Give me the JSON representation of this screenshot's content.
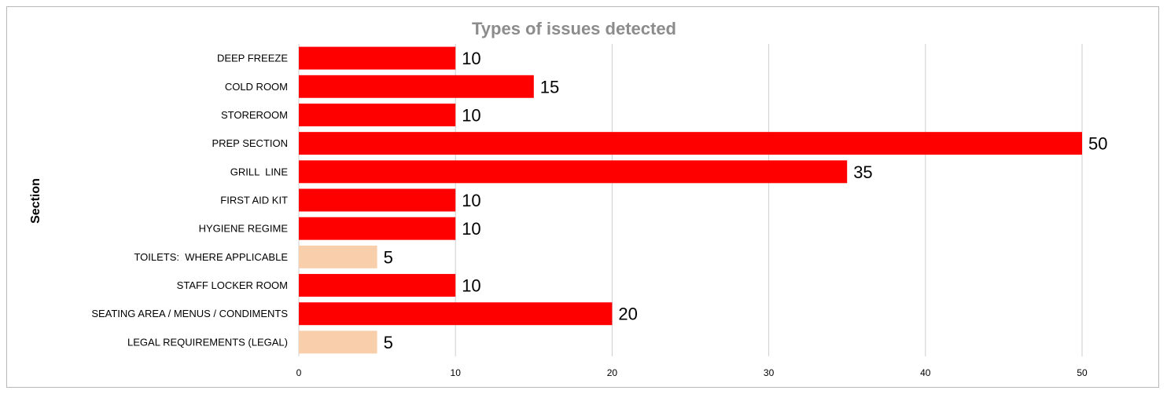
{
  "chart_data": {
    "type": "bar",
    "orientation": "horizontal",
    "title": "Types of issues detected",
    "xlabel": "",
    "ylabel": "Section",
    "xlim": [
      0,
      50
    ],
    "x_ticks": [
      0,
      10,
      20,
      30,
      40,
      50
    ],
    "grid": true,
    "categories": [
      "DEEP FREEZE",
      "COLD ROOM",
      "STOREROOM",
      "PREP SECTION",
      "GRILL  LINE",
      "FIRST AID KIT",
      "HYGIENE REGIME",
      "TOILETS:  WHERE APPLICABLE",
      "STAFF LOCKER ROOM",
      "SEATING AREA / MENUS / CONDIMENTS",
      "LEGAL REQUIREMENTS (LEGAL)"
    ],
    "values": [
      10,
      15,
      10,
      50,
      35,
      10,
      10,
      5,
      10,
      20,
      5
    ],
    "bar_colors": [
      "#ff0000",
      "#ff0000",
      "#ff0000",
      "#ff0000",
      "#ff0000",
      "#ff0000",
      "#ff0000",
      "#f8cfaa",
      "#ff0000",
      "#ff0000",
      "#f8cfaa"
    ],
    "gridline_color": "#cfcfcf"
  }
}
